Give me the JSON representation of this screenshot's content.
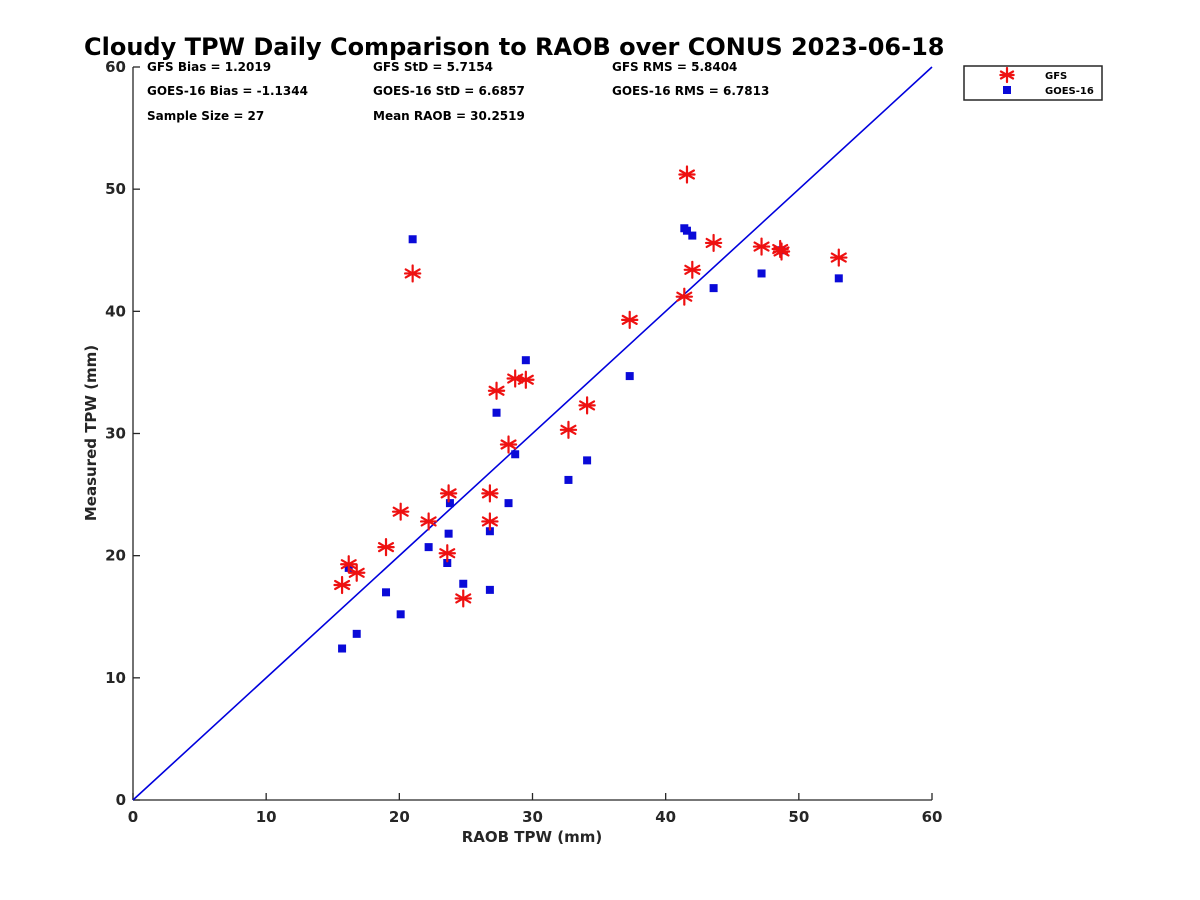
{
  "chart_data": {
    "type": "scatter",
    "title": "Cloudy TPW Daily Comparison to RAOB over CONUS 2023-06-18",
    "xlabel": "RAOB TPW (mm)",
    "ylabel": "Measured TPW (mm)",
    "xlim": [
      0,
      60
    ],
    "ylim": [
      0,
      60
    ],
    "xticks": [
      0,
      10,
      20,
      30,
      40,
      50,
      60
    ],
    "yticks": [
      0,
      10,
      20,
      30,
      40,
      50,
      60
    ],
    "grid": false,
    "legend_position": "top-right outside",
    "reference_line": {
      "from": [
        0,
        0
      ],
      "to": [
        60,
        60
      ],
      "color": "#0000dd"
    },
    "stats": {
      "gfs_bias": "GFS Bias = 1.2019",
      "gfs_std": "GFS StD = 5.7154",
      "gfs_rms": "GFS RMS = 5.8404",
      "goes_bias": "GOES-16 Bias = -1.1344",
      "goes_std": "GOES-16 StD = 6.6857",
      "goes_rms": "GOES-16 RMS = 6.7813",
      "sample_size": "Sample Size = 27",
      "mean_raob": "Mean RAOB = 30.2519"
    },
    "series": [
      {
        "name": "GFS",
        "marker": "asterisk",
        "color": "#ee1111",
        "x": [
          15.7,
          16.2,
          16.8,
          19.0,
          20.1,
          22.2,
          23.6,
          23.7,
          24.8,
          21.0,
          26.8,
          26.8,
          27.3,
          28.2,
          28.7,
          29.5,
          32.7,
          34.1,
          37.3,
          41.4,
          41.6,
          42.0,
          43.6,
          47.2,
          48.7,
          53.0,
          48.6
        ],
        "y": [
          17.6,
          19.3,
          18.6,
          20.7,
          23.6,
          22.8,
          20.2,
          25.1,
          16.5,
          43.1,
          25.1,
          22.8,
          33.5,
          29.1,
          34.5,
          34.4,
          30.3,
          32.3,
          39.3,
          41.2,
          51.2,
          43.4,
          45.6,
          45.3,
          44.9,
          44.4,
          45.1
        ]
      },
      {
        "name": "GOES-16",
        "marker": "square",
        "color": "#0a0ad8",
        "x": [
          15.7,
          16.2,
          16.8,
          19.0,
          20.1,
          21.0,
          22.2,
          23.6,
          23.7,
          23.8,
          24.8,
          26.8,
          26.8,
          27.3,
          28.2,
          28.7,
          29.5,
          32.7,
          34.1,
          37.3,
          41.4,
          41.6,
          42.0,
          43.6,
          47.2,
          48.7,
          53.0
        ],
        "y": [
          12.4,
          19.0,
          13.6,
          17.0,
          15.2,
          45.9,
          20.7,
          19.4,
          21.8,
          24.3,
          17.7,
          22.0,
          17.2,
          31.7,
          24.3,
          28.3,
          36.0,
          26.2,
          27.8,
          34.7,
          46.8,
          46.6,
          46.2,
          41.9,
          43.1,
          45.0,
          42.7
        ]
      }
    ]
  }
}
